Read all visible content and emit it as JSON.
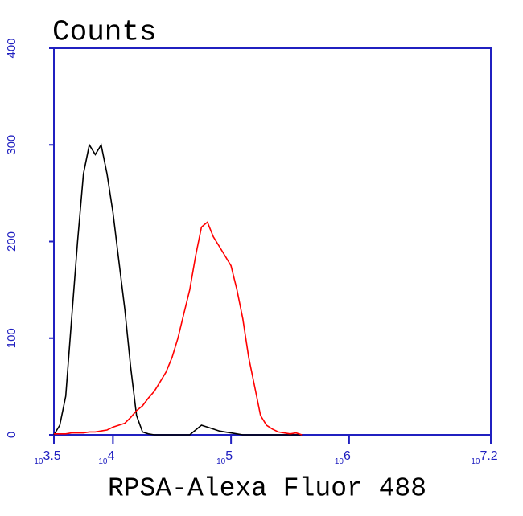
{
  "chart_data": {
    "type": "line",
    "title": "Counts",
    "x_label": "RPSA-Alexa Fluor 488",
    "xscale": "log",
    "xlim": [
      3162.28,
      15848932
    ],
    "xticks": [
      {
        "value": 3162.28,
        "label": "10^3.5"
      },
      {
        "value": 10000,
        "label": "10^4"
      },
      {
        "value": 100000,
        "label": "10^5"
      },
      {
        "value": 1000000,
        "label": "10^6"
      },
      {
        "value": 15848932,
        "label": "10^7.2"
      }
    ],
    "ylim": [
      0,
      400
    ],
    "yticks": [
      0,
      100,
      200,
      300,
      400
    ],
    "axis_color": "#2020c0",
    "x": [
      3162,
      3548,
      3981,
      4467,
      5012,
      5623,
      6310,
      7079,
      7943,
      8913,
      10000,
      11220,
      12589,
      14125,
      15849,
      17783,
      19953,
      22387,
      25119,
      28184,
      31623,
      35481,
      39811,
      44668,
      50119,
      56234,
      63096,
      70795,
      79433,
      89125,
      100000,
      112202,
      125893,
      141254,
      158489,
      177828,
      199526,
      223872,
      251189,
      281838,
      316228,
      354813,
      398107
    ],
    "series": [
      {
        "color": "#000000",
        "values": [
          0,
          10,
          40,
          120,
          200,
          270,
          300,
          290,
          300,
          270,
          230,
          180,
          130,
          70,
          20,
          3,
          1,
          0,
          0,
          0,
          0,
          0,
          0,
          0,
          5,
          10,
          8,
          6,
          4,
          3,
          2,
          1,
          0,
          0,
          0,
          0,
          0,
          0,
          0,
          0,
          0,
          0,
          0
        ]
      },
      {
        "color": "#ff0000",
        "values": [
          1,
          1,
          1,
          2,
          2,
          2,
          3,
          3,
          4,
          5,
          8,
          10,
          12,
          18,
          25,
          30,
          38,
          45,
          55,
          65,
          80,
          100,
          125,
          150,
          185,
          215,
          220,
          205,
          195,
          185,
          175,
          150,
          120,
          80,
          50,
          20,
          10,
          6,
          3,
          2,
          1,
          2,
          0
        ]
      }
    ]
  }
}
